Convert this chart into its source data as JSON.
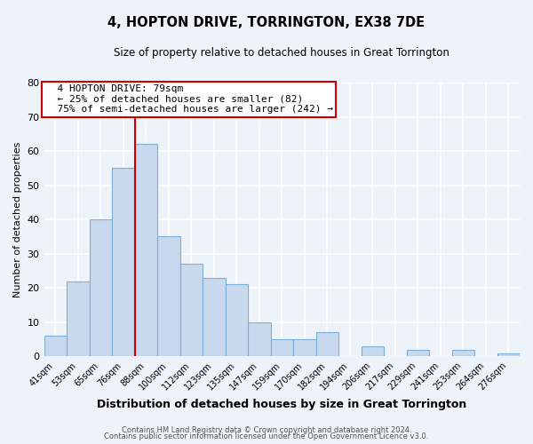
{
  "title": "4, HOPTON DRIVE, TORRINGTON, EX38 7DE",
  "subtitle": "Size of property relative to detached houses in Great Torrington",
  "xlabel": "Distribution of detached houses by size in Great Torrington",
  "ylabel": "Number of detached properties",
  "bin_labels": [
    "41sqm",
    "53sqm",
    "65sqm",
    "76sqm",
    "88sqm",
    "100sqm",
    "112sqm",
    "123sqm",
    "135sqm",
    "147sqm",
    "159sqm",
    "170sqm",
    "182sqm",
    "194sqm",
    "206sqm",
    "217sqm",
    "229sqm",
    "241sqm",
    "253sqm",
    "264sqm",
    "276sqm"
  ],
  "bar_heights": [
    6,
    22,
    40,
    55,
    62,
    35,
    27,
    23,
    21,
    10,
    5,
    5,
    7,
    0,
    3,
    0,
    2,
    0,
    2,
    0,
    1
  ],
  "bar_color": "#c9d9ed",
  "bar_edge_color": "#7bafd4",
  "vline_x_index": 3,
  "vline_color": "#cc0000",
  "annotation_title": "4 HOPTON DRIVE: 79sqm",
  "annotation_line1": "← 25% of detached houses are smaller (82)",
  "annotation_line2": "75% of semi-detached houses are larger (242) →",
  "annotation_box_edge": "#cc0000",
  "ylim": [
    0,
    80
  ],
  "yticks": [
    0,
    10,
    20,
    30,
    40,
    50,
    60,
    70,
    80
  ],
  "footer1": "Contains HM Land Registry data © Crown copyright and database right 2024.",
  "footer2": "Contains public sector information licensed under the Open Government Licence v3.0.",
  "bg_color": "#eef2f9"
}
